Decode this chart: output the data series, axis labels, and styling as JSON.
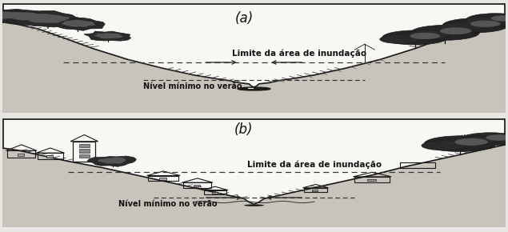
{
  "bg_color": "#e8e6e2",
  "panel_bg_a": "#ffffff",
  "panel_bg_b": "#ffffff",
  "border_color": "#222222",
  "label_a": "(a)",
  "label_b": "(b)",
  "label_fontsize": 12,
  "inundation_label": "Limite da área de inundação",
  "min_level_label": "Nível mínimo no verão",
  "inundation_fontsize": 7.5,
  "min_level_fontsize": 7.0,
  "terrain_fill": "#c8c4bc",
  "terrain_line": "#1a1a1a",
  "text_color": "#111111",
  "dashed_color": "#333333",
  "arrow_color": "#222222"
}
